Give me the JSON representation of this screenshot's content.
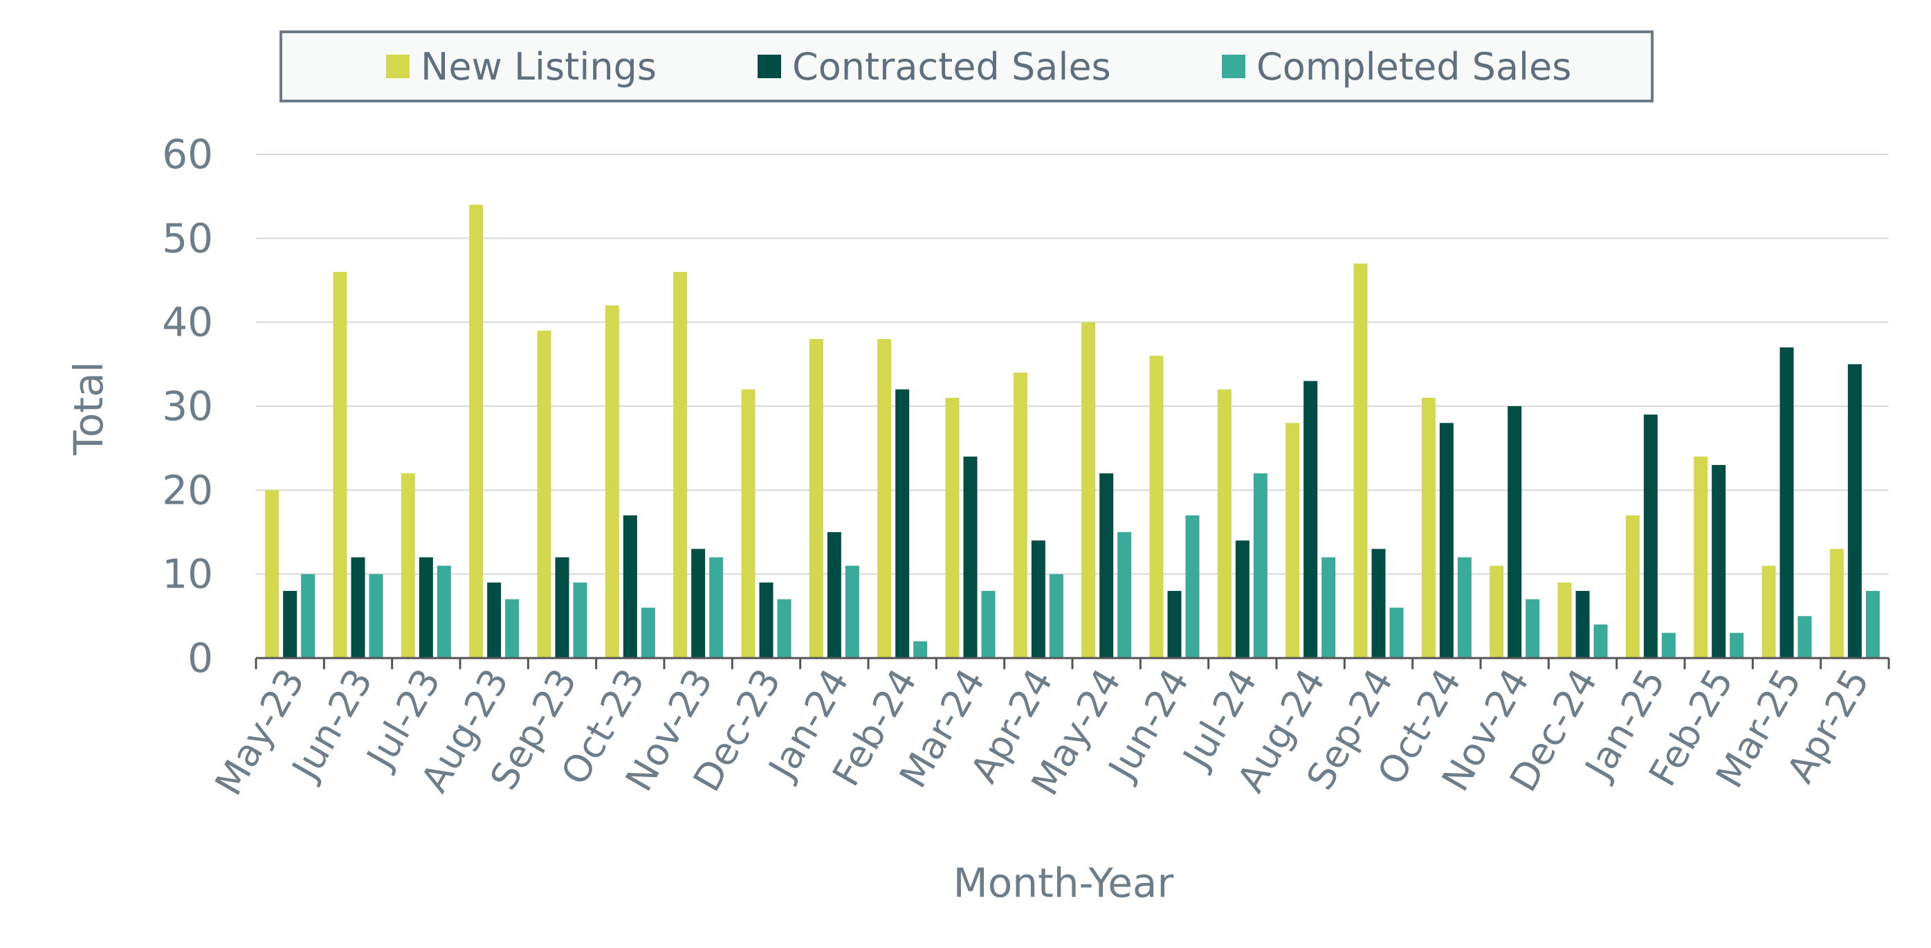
{
  "chart_data": {
    "type": "bar",
    "title": "",
    "xlabel": "Month-Year",
    "ylabel": "Total",
    "ylim": [
      0,
      60
    ],
    "yticks": [
      0,
      10,
      20,
      30,
      40,
      50,
      60
    ],
    "grid": true,
    "legend_position": "top",
    "categories": [
      "May-23",
      "Jun-23",
      "Jul-23",
      "Aug-23",
      "Sep-23",
      "Oct-23",
      "Nov-23",
      "Dec-23",
      "Jan-24",
      "Feb-24",
      "Mar-24",
      "Apr-24",
      "May-24",
      "Jun-24",
      "Jul-24",
      "Aug-24",
      "Sep-24",
      "Oct-24",
      "Nov-24",
      "Dec-24",
      "Jan-25",
      "Feb-25",
      "Mar-25",
      "Apr-25"
    ],
    "series": [
      {
        "name": "New Listings",
        "color": "#d4d84f",
        "values": [
          20,
          46,
          22,
          54,
          39,
          42,
          46,
          32,
          38,
          38,
          31,
          34,
          40,
          36,
          32,
          28,
          47,
          31,
          11,
          9,
          17,
          24,
          11,
          13
        ]
      },
      {
        "name": "Contracted Sales",
        "color": "#004d45",
        "values": [
          8,
          12,
          12,
          9,
          12,
          17,
          13,
          9,
          15,
          32,
          24,
          14,
          22,
          8,
          14,
          33,
          13,
          28,
          30,
          8,
          29,
          23,
          37,
          35
        ]
      },
      {
        "name": "Completed Sales",
        "color": "#3aaa9a",
        "values": [
          10,
          10,
          11,
          7,
          9,
          6,
          12,
          7,
          11,
          2,
          8,
          10,
          15,
          17,
          22,
          12,
          6,
          12,
          7,
          4,
          3,
          3,
          5,
          8
        ]
      }
    ]
  }
}
